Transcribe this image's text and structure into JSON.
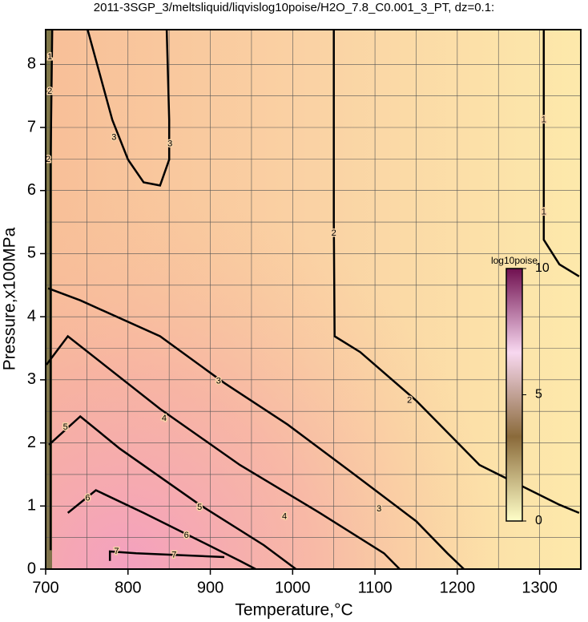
{
  "chart_data": {
    "type": "contour",
    "title": "2011-3SGP_3/meltsliquid/liqvislog10poise/H2O_7.8_C0.001_3_PT, dz=0.1:",
    "xlabel": "Temperature,°C",
    "ylabel": "Pressure,x100MPa",
    "xlim": [
      700,
      1350
    ],
    "ylim": [
      0,
      8.55
    ],
    "xticks": [
      700,
      800,
      900,
      1000,
      1100,
      1200,
      1300
    ],
    "yticks": [
      0,
      1,
      2,
      3,
      4,
      5,
      6,
      7,
      8
    ],
    "xminorticks": [
      750,
      850,
      950,
      1050,
      1150,
      1250
    ],
    "yminorticks": [
      0.5,
      1.5,
      2.5,
      3.5,
      4.5,
      5.5,
      6.5,
      7.5
    ],
    "grid": true,
    "contours": [
      {
        "level": 3,
        "x": [
          751,
          781,
          800,
          819,
          839,
          850,
          850,
          847
        ],
        "y": [
          8.55,
          7.12,
          6.49,
          6.13,
          6.08,
          6.49,
          7.12,
          8.55
        ]
      },
      {
        "level": 2,
        "x": [
          1050,
          1050,
          1051,
          1082,
          1150,
          1227,
          1324,
          1348
        ],
        "y": [
          8.55,
          5.5,
          3.69,
          3.44,
          2.67,
          1.65,
          1.02,
          0.89
        ]
      },
      {
        "level": 1,
        "x": [
          1305,
          1305,
          1324,
          1348
        ],
        "y": [
          8.55,
          5.22,
          4.83,
          4.64
        ]
      },
      {
        "level": 3,
        "x": [
          703,
          742,
          839,
          917,
          994,
          1072,
          1150,
          1188,
          1208
        ],
        "y": [
          4.45,
          4.26,
          3.69,
          2.95,
          2.29,
          1.53,
          0.76,
          0.25,
          0
        ]
      },
      {
        "level": 4,
        "x": [
          701,
          727,
          839,
          936,
          1033,
          1111,
          1130
        ],
        "y": [
          3.24,
          3.69,
          2.54,
          1.65,
          0.89,
          0.25,
          0
        ]
      },
      {
        "level": 5,
        "x": [
          704,
          742,
          790,
          887,
          965,
          1004
        ],
        "y": [
          1.97,
          2.42,
          1.91,
          1.02,
          0.38,
          0
        ]
      },
      {
        "level": 6,
        "x": [
          727,
          761,
          819,
          887,
          936,
          955
        ],
        "y": [
          0.89,
          1.25,
          0.89,
          0.45,
          0.13,
          0
        ]
      },
      {
        "level": 7,
        "x": [
          778,
          778,
          810,
          917
        ],
        "y": [
          0.13,
          0.28,
          0.25,
          0.19
        ]
      },
      {
        "level": 2,
        "x": [
          706,
          706,
          708
        ],
        "y": [
          0.3,
          6.49,
          8.55
        ]
      }
    ],
    "labels": [
      {
        "level": 3,
        "x": 783,
        "y": 6.84
      },
      {
        "level": 3,
        "x": 851,
        "y": 6.74
      },
      {
        "level": 2,
        "x": 1050,
        "y": 5.32
      },
      {
        "level": 1,
        "x": 1305,
        "y": 7.12
      },
      {
        "level": 1,
        "x": 1305,
        "y": 5.66
      },
      {
        "level": 3,
        "x": 910,
        "y": 2.98
      },
      {
        "level": 2,
        "x": 1142,
        "y": 2.67
      },
      {
        "level": 4,
        "x": 844,
        "y": 2.39
      },
      {
        "level": 5,
        "x": 724,
        "y": 2.25
      },
      {
        "level": 6,
        "x": 751,
        "y": 1.12
      },
      {
        "level": 5,
        "x": 887,
        "y": 0.98
      },
      {
        "level": 4,
        "x": 990,
        "y": 0.83
      },
      {
        "level": 3,
        "x": 1105,
        "y": 0.95
      },
      {
        "level": 6,
        "x": 871,
        "y": 0.53
      },
      {
        "level": 7,
        "x": 786,
        "y": 0.28
      },
      {
        "level": 7,
        "x": 856,
        "y": 0.22
      },
      {
        "level": 1,
        "x": 705,
        "y": 8.12
      },
      {
        "level": 2,
        "x": 705,
        "y": 7.57
      },
      {
        "level": 2,
        "x": 703,
        "y": 6.49
      }
    ],
    "colorbar": {
      "label": "log10poise",
      "lim": [
        0,
        10
      ],
      "ticks": [
        0,
        5,
        10
      ],
      "colors": [
        "#ffffc8",
        "#8a6a3a",
        "#f8d8f0",
        "#701050"
      ]
    }
  }
}
